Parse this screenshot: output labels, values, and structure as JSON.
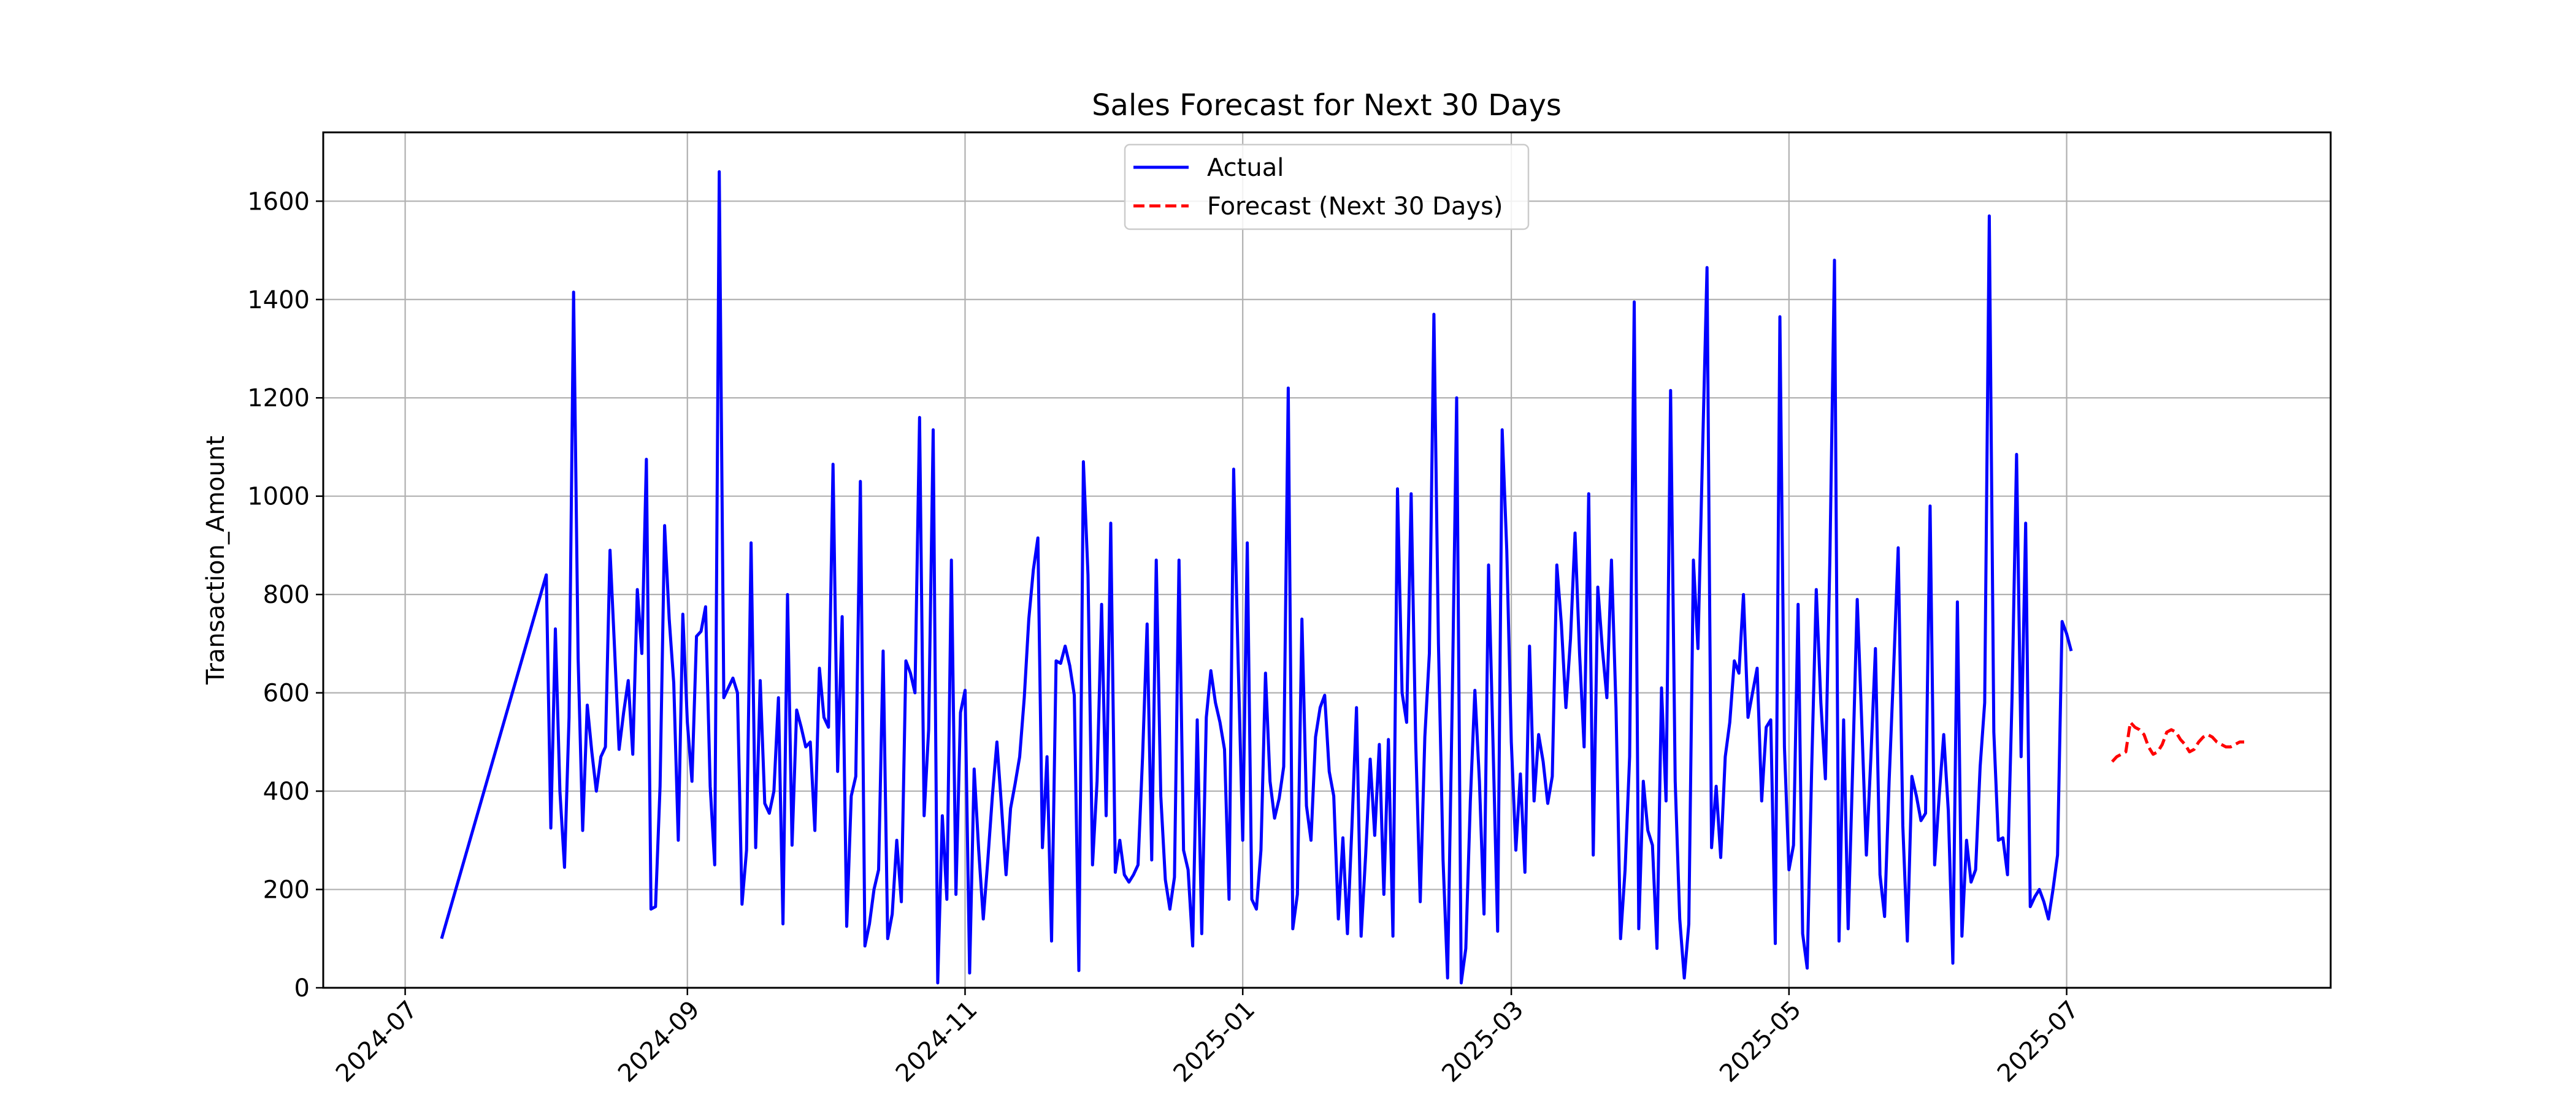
{
  "chart_data": {
    "type": "line",
    "title": "Sales Forecast for Next 30 Days",
    "xlabel": "",
    "ylabel": "Transaction_Amount",
    "ylim": [
      0,
      1740
    ],
    "xlim": [
      "2024-06-13",
      "2025-08-28"
    ],
    "grid": true,
    "legend_position": "top-center",
    "x_ticks": [
      "2024-07",
      "2024-09",
      "2024-11",
      "2025-01",
      "2025-03",
      "2025-05",
      "2025-07"
    ],
    "y_ticks": [
      0,
      200,
      400,
      600,
      800,
      1000,
      1200,
      1400,
      1600
    ],
    "series": [
      {
        "name": "Actual",
        "color": "#0000ff",
        "style": "solid",
        "start_date": "2024-07-09",
        "gap_after_index": 0,
        "second_start_date": "2024-08-01",
        "values": [
          100,
          840,
          325,
          730,
          400,
          245,
          550,
          1415,
          670,
          320,
          575,
          480,
          400,
          470,
          490,
          890,
          690,
          485,
          560,
          625,
          475,
          810,
          680,
          1075,
          160,
          165,
          410,
          940,
          750,
          620,
          300,
          760,
          540,
          420,
          715,
          725,
          775,
          410,
          250,
          1660,
          590,
          610,
          630,
          600,
          170,
          280,
          905,
          285,
          625,
          375,
          355,
          400,
          590,
          130,
          800,
          290,
          565,
          530,
          490,
          500,
          320,
          650,
          550,
          530,
          1065,
          440,
          755,
          125,
          390,
          430,
          1030,
          85,
          130,
          200,
          240,
          685,
          100,
          150,
          300,
          175,
          665,
          640,
          600,
          1160,
          350,
          525,
          1135,
          10,
          350,
          180,
          870,
          190,
          560,
          605,
          30,
          445,
          280,
          140,
          260,
          390,
          500,
          370,
          230,
          365,
          415,
          470,
          590,
          750,
          850,
          915,
          285,
          470,
          95,
          665,
          660,
          695,
          655,
          595,
          35,
          1070,
          840,
          250,
          420,
          780,
          350,
          945,
          235,
          300,
          230,
          215,
          230,
          250,
          470,
          740,
          260,
          870,
          390,
          220,
          160,
          225,
          870,
          280,
          240,
          85,
          545,
          110,
          550,
          645,
          580,
          540,
          485,
          180,
          1055,
          660,
          300,
          905,
          180,
          160,
          280,
          640,
          420,
          345,
          385,
          450,
          1220,
          120,
          190,
          750,
          370,
          300,
          510,
          570,
          595,
          440,
          390,
          140,
          305,
          110,
          330,
          570,
          105,
          270,
          465,
          310,
          495,
          190,
          505,
          105,
          1015,
          600,
          540,
          1005,
          500,
          175,
          510,
          680,
          1370,
          700,
          260,
          20,
          570,
          1200,
          10,
          80,
          380,
          605,
          420,
          150,
          860,
          490,
          115,
          1135,
          890,
          500,
          280,
          435,
          235,
          695,
          380,
          515,
          460,
          375,
          430,
          860,
          740,
          570,
          710,
          925,
          680,
          490,
          1005,
          270,
          815,
          690,
          590,
          870,
          570,
          100,
          240,
          470,
          1395,
          120,
          420,
          320,
          290,
          80,
          610,
          380,
          1215,
          420,
          140,
          20,
          130,
          870,
          690,
          1085,
          1465,
          285,
          410,
          265,
          470,
          540,
          665,
          640,
          800,
          550,
          600,
          650,
          380,
          530,
          545,
          90,
          1365,
          490,
          240,
          290,
          780,
          110,
          40,
          450,
          810,
          580,
          425,
          880,
          1480,
          95,
          545,
          120,
          450,
          790,
          535,
          270,
          470,
          690,
          230,
          145,
          420,
          650,
          895,
          330,
          95,
          430,
          390,
          340,
          355,
          980,
          250,
          390,
          515,
          360,
          50,
          785,
          105,
          300,
          215,
          240,
          450,
          580,
          1570,
          520,
          300,
          305,
          230,
          590,
          1085,
          470,
          945,
          165,
          185,
          200,
          175,
          140,
          200,
          270,
          745,
          720,
          685
        ]
      },
      {
        "name": "Forecast (Next 30 Days)",
        "color": "#ff0000",
        "style": "dashed",
        "start_date": "2025-07-11",
        "values": [
          460,
          470,
          475,
          480,
          540,
          530,
          525,
          515,
          490,
          475,
          480,
          495,
          520,
          525,
          520,
          505,
          495,
          480,
          485,
          500,
          510,
          515,
          510,
          500,
          495,
          490,
          490,
          495,
          500,
          500
        ]
      }
    ]
  }
}
